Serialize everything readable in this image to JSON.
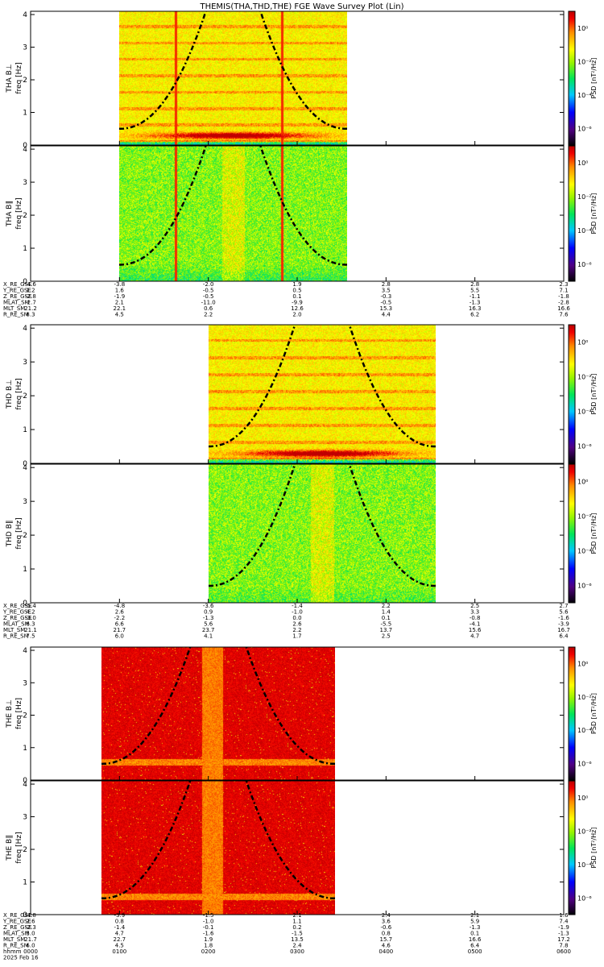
{
  "chart_data": {
    "type": "heatmap",
    "title": "THEMIS(THA,THD,THE) FGE Wave Survey Plot (Lin)",
    "colorbar": {
      "label": "PSD [nT²/Hz]",
      "tick_labels": [
        "10⁰",
        "10⁻²",
        "10⁻⁴",
        "10⁻⁶"
      ],
      "log_range": [
        -7,
        1
      ],
      "tick_exponents": [
        0,
        -2,
        -4,
        -6
      ]
    },
    "time_axis": {
      "range_hours": [
        0,
        6
      ],
      "tick_labels": [
        "0000",
        "0100",
        "0200",
        "0300",
        "0400",
        "0500",
        "0600"
      ],
      "date_label": "2025 Feb 16",
      "hhmm_label": "hhmm"
    },
    "freq_axis": {
      "range": [
        0,
        4.1
      ],
      "tick_values": [
        0,
        1,
        2,
        3,
        4
      ],
      "tick_labels": [
        "0",
        "1",
        "2",
        "3",
        "4"
      ]
    },
    "panels": [
      {
        "probe": "THA",
        "label_top": "THA B⊥",
        "label_bottom": "freq [Hz]",
        "data_start_h": 1.0,
        "data_end_h": 3.56,
        "palette": "normal",
        "spike_times_h": [
          1.63,
          2.83
        ],
        "low_band_strength": 1.0
      },
      {
        "probe": "THA",
        "label_top": "THA B∥",
        "label_bottom": "freq [Hz]",
        "data_start_h": 1.0,
        "data_end_h": 3.56,
        "palette": "green",
        "spike_times_h": [
          1.63,
          2.83
        ],
        "low_band_strength": 0.5
      },
      {
        "probe": "THD",
        "label_top": "THD B⊥",
        "label_bottom": "freq [Hz]",
        "data_start_h": 2.0,
        "data_end_h": 4.56,
        "palette": "normal",
        "spike_times_h": [],
        "low_band_strength": 1.0
      },
      {
        "probe": "THD",
        "label_top": "THD B∥",
        "label_bottom": "freq [Hz]",
        "data_start_h": 2.0,
        "data_end_h": 4.56,
        "palette": "green",
        "spike_times_h": [],
        "low_band_strength": 0.3
      },
      {
        "probe": "THE",
        "label_top": "THE B⊥",
        "label_bottom": "freq [Hz]",
        "data_start_h": 0.8,
        "data_end_h": 3.43,
        "palette": "red",
        "spike_times_h": [],
        "low_band_strength": 0.8
      },
      {
        "probe": "THE",
        "label_top": "THE B∥",
        "label_bottom": "freq [Hz]",
        "data_start_h": 0.8,
        "data_end_h": 3.43,
        "palette": "red",
        "spike_times_h": [],
        "low_band_strength": 0.8
      }
    ],
    "ephemeris_blocks": [
      {
        "labels": [
          "X_RE_GSE",
          "Y_RE_GSE",
          "Z_RE_GSE",
          "MLAT_SM",
          "MLT_SM",
          "R_RE_SM"
        ],
        "columns": [
          [
            "-4.6",
            "1.2",
            "-2.8",
            "-2.7",
            "21.2",
            "8.3"
          ],
          [
            "-3.8",
            "1.6",
            "-1.9",
            "2.1",
            "22.1",
            "4.5"
          ],
          [
            "-2.0",
            "-0.5",
            "-0.5",
            "-11.0",
            "0.6",
            "2.2"
          ],
          [
            "1.9",
            "0.5",
            "0.1",
            "-9.9",
            "12.6",
            "2.0"
          ],
          [
            "2.8",
            "3.5",
            "-0.3",
            "-0.5",
            "15.3",
            "4.4"
          ],
          [
            "2.8",
            "5.5",
            "-1.1",
            "-1.3",
            "16.3",
            "6.2"
          ],
          [
            "2.3",
            "7.1",
            "-1.8",
            "-2.8",
            "16.6",
            "7.6"
          ]
        ]
      },
      {
        "labels": [
          "X_RE_GSE",
          "Y_RE_GSE",
          "Z_RE_GSE",
          "MLAT_SM",
          "MLT_SM",
          "R_RE_SM"
        ],
        "columns": [
          [
            "-5.4",
            "4.2",
            "-3.0",
            "6.3",
            "21.1",
            "7.5"
          ],
          [
            "-4.8",
            "2.6",
            "-2.2",
            "6.6",
            "21.7",
            "6.0"
          ],
          [
            "-3.6",
            "0.9",
            "-1.3",
            "5.6",
            "23.7",
            "4.1"
          ],
          [
            "-1.4",
            "-1.0",
            "0.0",
            "2.6",
            "2.2",
            "1.7"
          ],
          [
            "2.2",
            "1.4",
            "0.1",
            "-5.5",
            "13.7",
            "2.5"
          ],
          [
            "2.5",
            "3.3",
            "-0.8",
            "-4.1",
            "15.6",
            "4.7"
          ],
          [
            "2.7",
            "5.6",
            "-1.6",
            "-3.9",
            "16.7",
            "6.4"
          ]
        ]
      },
      {
        "labels": [
          "X_RE_GSE",
          "Y_RE_GSE",
          "Z_RE_GSE",
          "MLAT_SM",
          "MLT_SM",
          "R_RE_SM",
          "hhmm",
          "2025 Feb 16"
        ],
        "columns": [
          [
            "-4.8",
            "2.6",
            "-2.3",
            "5.0",
            "21.7",
            "6.0",
            "0000"
          ],
          [
            "-3.9",
            "0.8",
            "-1.4",
            "4.7",
            "22.7",
            "4.5",
            "0100"
          ],
          [
            "-1.5",
            "-1.0",
            "-0.1",
            "-1.6",
            "1.9",
            "1.8",
            "0200"
          ],
          [
            "2.1",
            "1.1",
            "0.2",
            "-1.5",
            "13.5",
            "2.4",
            "0300"
          ],
          [
            "2.4",
            "3.6",
            "-0.6",
            "0.8",
            "15.7",
            "4.6",
            "0400"
          ],
          [
            "2.1",
            "5.9",
            "-1.3",
            "0.1",
            "16.6",
            "6.4",
            "0500"
          ],
          [
            "1.6",
            "7.4",
            "-1.9",
            "-1.3",
            "17.2",
            "7.8",
            "0600"
          ]
        ]
      }
    ]
  }
}
